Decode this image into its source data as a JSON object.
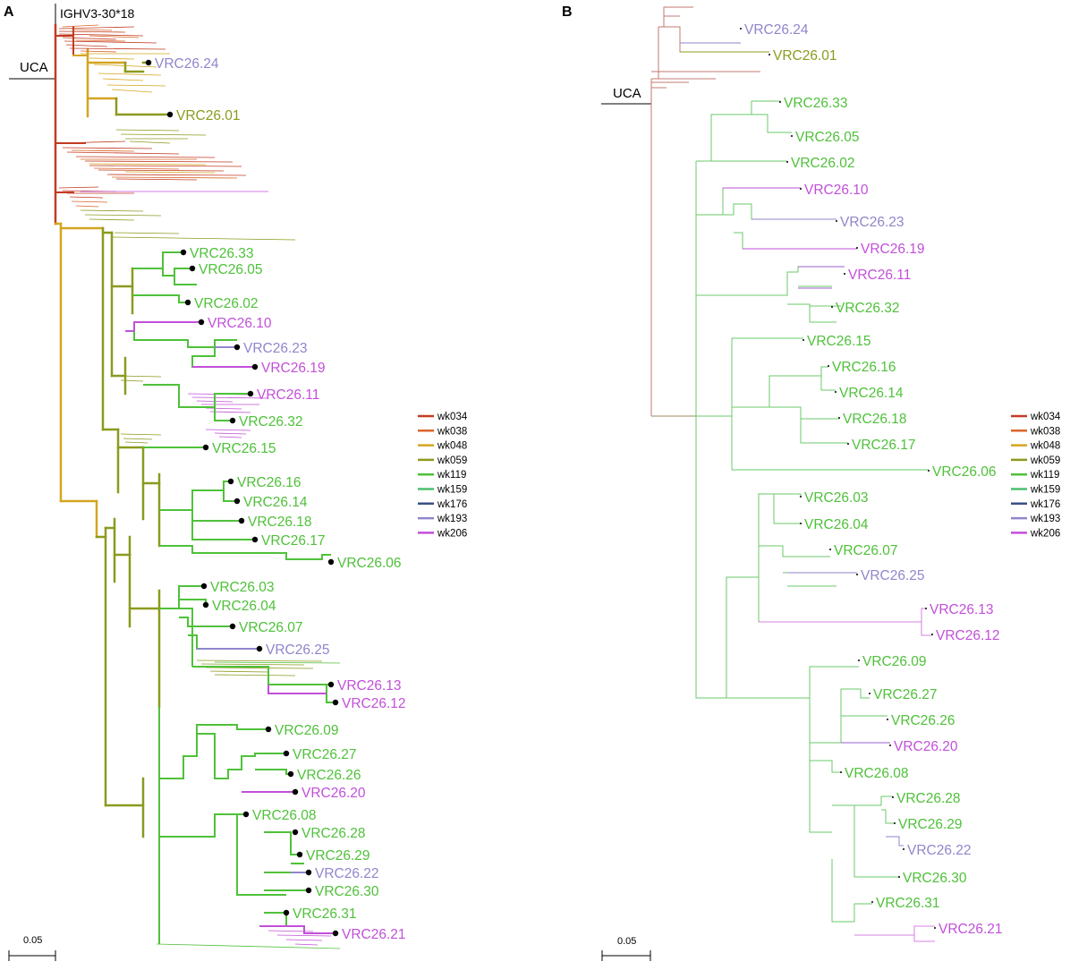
{
  "colors": {
    "wk034": "#c23b22",
    "wk038": "#d9652a",
    "wk048": "#d4a520",
    "wk059": "#8c9a1e",
    "wk119": "#4fc13a",
    "wk159": "#4cc070",
    "wk176": "#3a4f86",
    "wk193": "#8f86cc",
    "wk206": "#c24fd9"
  },
  "panelA": {
    "letter": "A",
    "germline": "IGHV3-30*18",
    "uca": "UCA",
    "scale_label": "0.05",
    "leaves": [
      {
        "name": "VRC26.24",
        "color": "wk193"
      },
      {
        "name": "VRC26.01",
        "color": "wk059"
      },
      {
        "name": "VRC26.33",
        "color": "wk119"
      },
      {
        "name": "VRC26.05",
        "color": "wk119"
      },
      {
        "name": "VRC26.02",
        "color": "wk119"
      },
      {
        "name": "VRC26.10",
        "color": "wk206"
      },
      {
        "name": "VRC26.23",
        "color": "wk193"
      },
      {
        "name": "VRC26.19",
        "color": "wk206"
      },
      {
        "name": "VRC26.11",
        "color": "wk206"
      },
      {
        "name": "VRC26.32",
        "color": "wk119"
      },
      {
        "name": "VRC26.15",
        "color": "wk119"
      },
      {
        "name": "VRC26.16",
        "color": "wk119"
      },
      {
        "name": "VRC26.14",
        "color": "wk119"
      },
      {
        "name": "VRC26.18",
        "color": "wk119"
      },
      {
        "name": "VRC26.17",
        "color": "wk119"
      },
      {
        "name": "VRC26.06",
        "color": "wk119"
      },
      {
        "name": "VRC26.03",
        "color": "wk119"
      },
      {
        "name": "VRC26.04",
        "color": "wk119"
      },
      {
        "name": "VRC26.07",
        "color": "wk119"
      },
      {
        "name": "VRC26.25",
        "color": "wk193"
      },
      {
        "name": "VRC26.13",
        "color": "wk206"
      },
      {
        "name": "VRC26.12",
        "color": "wk206"
      },
      {
        "name": "VRC26.09",
        "color": "wk119"
      },
      {
        "name": "VRC26.27",
        "color": "wk119"
      },
      {
        "name": "VRC26.26",
        "color": "wk119"
      },
      {
        "name": "VRC26.20",
        "color": "wk206"
      },
      {
        "name": "VRC26.08",
        "color": "wk119"
      },
      {
        "name": "VRC26.28",
        "color": "wk119"
      },
      {
        "name": "VRC26.29",
        "color": "wk119"
      },
      {
        "name": "VRC26.22",
        "color": "wk193"
      },
      {
        "name": "VRC26.30",
        "color": "wk119"
      },
      {
        "name": "VRC26.31",
        "color": "wk119"
      },
      {
        "name": "VRC26.21",
        "color": "wk206"
      }
    ]
  },
  "panelB": {
    "letter": "B",
    "uca": "UCA",
    "scale_label": "0.05",
    "leaves": [
      {
        "name": "VRC26.24",
        "color": "wk193"
      },
      {
        "name": "VRC26.01",
        "color": "wk059"
      },
      {
        "name": "VRC26.33",
        "color": "wk119"
      },
      {
        "name": "VRC26.05",
        "color": "wk119"
      },
      {
        "name": "VRC26.02",
        "color": "wk119"
      },
      {
        "name": "VRC26.10",
        "color": "wk206"
      },
      {
        "name": "VRC26.23",
        "color": "wk193"
      },
      {
        "name": "VRC26.19",
        "color": "wk206"
      },
      {
        "name": "VRC26.11",
        "color": "wk206"
      },
      {
        "name": "VRC26.32",
        "color": "wk119"
      },
      {
        "name": "VRC26.15",
        "color": "wk119"
      },
      {
        "name": "VRC26.16",
        "color": "wk119"
      },
      {
        "name": "VRC26.14",
        "color": "wk119"
      },
      {
        "name": "VRC26.18",
        "color": "wk119"
      },
      {
        "name": "VRC26.17",
        "color": "wk119"
      },
      {
        "name": "VRC26.06",
        "color": "wk119"
      },
      {
        "name": "VRC26.03",
        "color": "wk119"
      },
      {
        "name": "VRC26.04",
        "color": "wk119"
      },
      {
        "name": "VRC26.07",
        "color": "wk119"
      },
      {
        "name": "VRC26.25",
        "color": "wk193"
      },
      {
        "name": "VRC26.13",
        "color": "wk206"
      },
      {
        "name": "VRC26.12",
        "color": "wk206"
      },
      {
        "name": "VRC26.09",
        "color": "wk119"
      },
      {
        "name": "VRC26.27",
        "color": "wk119"
      },
      {
        "name": "VRC26.26",
        "color": "wk119"
      },
      {
        "name": "VRC26.20",
        "color": "wk206"
      },
      {
        "name": "VRC26.08",
        "color": "wk119"
      },
      {
        "name": "VRC26.28",
        "color": "wk119"
      },
      {
        "name": "VRC26.29",
        "color": "wk119"
      },
      {
        "name": "VRC26.22",
        "color": "wk193"
      },
      {
        "name": "VRC26.30",
        "color": "wk119"
      },
      {
        "name": "VRC26.31",
        "color": "wk119"
      },
      {
        "name": "VRC26.21",
        "color": "wk206"
      }
    ]
  },
  "legend": [
    "wk034",
    "wk038",
    "wk048",
    "wk059",
    "wk119",
    "wk159",
    "wk176",
    "wk193",
    "wk206"
  ]
}
